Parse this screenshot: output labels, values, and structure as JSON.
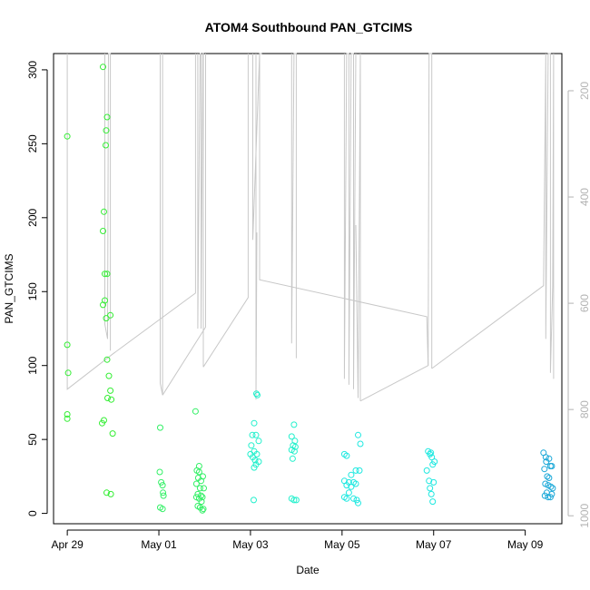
{
  "chart_data": {
    "type": "scatter",
    "title": "ATOM4 Southbound PAN_GTCIMS",
    "xlabel": "Date",
    "ylabel": "PAN_GTCIMS",
    "x_unit": "days",
    "x_origin_date": "Apr 29",
    "xlim": [
      -0.3,
      10.8
    ],
    "ylim": [
      -7,
      311
    ],
    "x_ticks": [
      {
        "x": 0,
        "label": "Apr 29"
      },
      {
        "x": 2,
        "label": "May 01"
      },
      {
        "x": 4,
        "label": "May 03"
      },
      {
        "x": 6,
        "label": "May 05"
      },
      {
        "x": 8,
        "label": "May 07"
      },
      {
        "x": 10,
        "label": "May 09"
      }
    ],
    "y_ticks": [
      0,
      50,
      100,
      150,
      200,
      250,
      300
    ],
    "y2_ticks": [
      200,
      400,
      600,
      800,
      1000
    ],
    "y2lim": [
      1015,
      130
    ],
    "grid": false,
    "legend": "none",
    "colors": {
      "trace": "#c8c8c8",
      "day1": "#33ee33",
      "day2": "#33f066",
      "day3": "#22f0cc",
      "day4": "#1ee8e0",
      "day5": "#1aa8d8"
    },
    "series": [
      {
        "color": "#33ee33",
        "points": [
          [
            0.0,
            255
          ],
          [
            0.0,
            114
          ],
          [
            0.02,
            95
          ],
          [
            0.0,
            67
          ],
          [
            0.0,
            64
          ],
          [
            0.78,
            302
          ],
          [
            0.87,
            268
          ],
          [
            0.85,
            259
          ],
          [
            0.84,
            249
          ],
          [
            0.8,
            204
          ],
          [
            0.78,
            191
          ],
          [
            0.82,
            162
          ],
          [
            0.87,
            162
          ],
          [
            0.78,
            141
          ],
          [
            0.82,
            144
          ],
          [
            0.85,
            132
          ],
          [
            0.94,
            134
          ],
          [
            0.87,
            104
          ],
          [
            0.91,
            93
          ],
          [
            0.94,
            83
          ],
          [
            0.88,
            78
          ],
          [
            0.96,
            77
          ],
          [
            0.8,
            63
          ],
          [
            0.76,
            61
          ],
          [
            0.99,
            54
          ],
          [
            0.86,
            14
          ],
          [
            0.95,
            13
          ]
        ]
      },
      {
        "color": "#33f066",
        "points": [
          [
            2.03,
            58
          ],
          [
            2.02,
            28
          ],
          [
            2.05,
            21
          ],
          [
            2.08,
            19
          ],
          [
            2.09,
            14
          ],
          [
            2.1,
            12
          ],
          [
            2.03,
            4
          ],
          [
            2.08,
            3
          ],
          [
            2.8,
            69
          ],
          [
            2.88,
            32
          ],
          [
            2.83,
            29
          ],
          [
            2.88,
            28
          ],
          [
            2.96,
            25
          ],
          [
            2.86,
            24
          ],
          [
            2.92,
            22
          ],
          [
            2.82,
            20
          ],
          [
            2.9,
            17
          ],
          [
            2.98,
            17
          ],
          [
            2.85,
            13
          ],
          [
            2.92,
            12
          ],
          [
            2.95,
            11
          ],
          [
            2.82,
            11
          ],
          [
            2.88,
            10
          ],
          [
            2.93,
            8
          ],
          [
            2.85,
            5
          ],
          [
            2.9,
            4
          ],
          [
            2.97,
            3
          ],
          [
            2.95,
            2
          ]
        ]
      },
      {
        "color": "#22f0cc",
        "points": [
          [
            4.13,
            81
          ],
          [
            4.15,
            80
          ],
          [
            4.08,
            61
          ],
          [
            4.04,
            53
          ],
          [
            4.12,
            53
          ],
          [
            4.18,
            49
          ],
          [
            4.02,
            46
          ],
          [
            4.08,
            42
          ],
          [
            4.0,
            40
          ],
          [
            4.14,
            40
          ],
          [
            4.05,
            38
          ],
          [
            4.1,
            36
          ],
          [
            4.18,
            35
          ],
          [
            4.12,
            33
          ],
          [
            4.08,
            31
          ],
          [
            4.07,
            9
          ],
          [
            4.95,
            60
          ],
          [
            4.9,
            52
          ],
          [
            4.97,
            49
          ],
          [
            4.93,
            46
          ],
          [
            4.98,
            45
          ],
          [
            4.9,
            43
          ],
          [
            4.96,
            42
          ],
          [
            4.92,
            37
          ],
          [
            4.9,
            10
          ],
          [
            4.95,
            9
          ],
          [
            5.0,
            9
          ]
        ]
      },
      {
        "color": "#1ee8e0",
        "points": [
          [
            6.35,
            53
          ],
          [
            6.4,
            47
          ],
          [
            6.05,
            40
          ],
          [
            6.1,
            39
          ],
          [
            6.3,
            29
          ],
          [
            6.38,
            29
          ],
          [
            6.2,
            26
          ],
          [
            6.05,
            22
          ],
          [
            6.15,
            21
          ],
          [
            6.25,
            21
          ],
          [
            6.3,
            20
          ],
          [
            6.1,
            19
          ],
          [
            6.2,
            18
          ],
          [
            6.15,
            14
          ],
          [
            6.05,
            11
          ],
          [
            6.1,
            10
          ],
          [
            6.25,
            10
          ],
          [
            6.32,
            9
          ],
          [
            6.35,
            7
          ],
          [
            7.88,
            42
          ],
          [
            7.94,
            41
          ],
          [
            7.92,
            40
          ],
          [
            7.96,
            38
          ],
          [
            8.02,
            35
          ],
          [
            7.98,
            33
          ],
          [
            7.85,
            29
          ],
          [
            7.9,
            22
          ],
          [
            8.0,
            21
          ],
          [
            7.92,
            17
          ],
          [
            7.95,
            13
          ],
          [
            7.98,
            8
          ]
        ]
      },
      {
        "color": "#1aa8d8",
        "points": [
          [
            10.4,
            41
          ],
          [
            10.45,
            38
          ],
          [
            10.52,
            37
          ],
          [
            10.46,
            35
          ],
          [
            10.55,
            32
          ],
          [
            10.58,
            32
          ],
          [
            10.42,
            30
          ],
          [
            10.48,
            25
          ],
          [
            10.52,
            24
          ],
          [
            10.44,
            20
          ],
          [
            10.5,
            19
          ],
          [
            10.56,
            18
          ],
          [
            10.6,
            17
          ],
          [
            10.47,
            14
          ],
          [
            10.58,
            13
          ],
          [
            10.43,
            12
          ],
          [
            10.5,
            11
          ],
          [
            10.55,
            11
          ]
        ]
      }
    ],
    "traces": [
      [
        [
          0.0,
          311
        ],
        [
          0.0,
          84
        ],
        [
          1.0,
          108
        ],
        [
          2.8,
          149
        ],
        [
          2.8,
          311
        ]
      ],
      [
        [
          0.82,
          311
        ],
        [
          0.82,
          128
        ],
        [
          0.88,
          118
        ],
        [
          0.9,
          311
        ],
        [
          0.94,
          311
        ],
        [
          0.94,
          110
        ]
      ],
      [
        [
          2.03,
          311
        ],
        [
          2.03,
          88
        ],
        [
          2.08,
          80
        ],
        [
          2.08,
          311
        ]
      ],
      [
        [
          2.08,
          80
        ],
        [
          3.02,
          126
        ],
        [
          3.02,
          311
        ]
      ],
      [
        [
          2.85,
          311
        ],
        [
          2.85,
          125
        ],
        [
          2.9,
          311
        ],
        [
          2.92,
          311
        ],
        [
          2.92,
          125
        ],
        [
          2.96,
          311
        ],
        [
          2.97,
          311
        ],
        [
          2.97,
          99
        ]
      ],
      [
        [
          2.97,
          99
        ],
        [
          3.95,
          146
        ],
        [
          3.95,
          311
        ]
      ],
      [
        [
          4.05,
          311
        ],
        [
          4.05,
          185
        ],
        [
          4.2,
          311
        ],
        [
          4.25,
          311
        ]
      ],
      [
        [
          4.2,
          311
        ],
        [
          4.2,
          158
        ],
        [
          7.85,
          133
        ],
        [
          7.88,
          100
        ]
      ],
      [
        [
          4.12,
          311
        ],
        [
          4.12,
          77
        ],
        [
          4.14,
          190
        ]
      ],
      [
        [
          4.9,
          311
        ],
        [
          4.9,
          115
        ],
        [
          4.95,
          311
        ],
        [
          5.0,
          311
        ],
        [
          5.0,
          105
        ]
      ],
      [
        [
          6.05,
          311
        ],
        [
          6.05,
          91
        ],
        [
          6.1,
          311
        ],
        [
          6.15,
          311
        ],
        [
          6.15,
          87
        ],
        [
          6.2,
          311
        ],
        [
          6.25,
          311
        ],
        [
          6.25,
          84
        ],
        [
          6.3,
          311
        ]
      ],
      [
        [
          6.3,
          195
        ],
        [
          6.35,
          78
        ],
        [
          6.4,
          311
        ],
        [
          6.4,
          76
        ]
      ],
      [
        [
          6.4,
          76
        ],
        [
          7.88,
          100
        ],
        [
          7.9,
          311
        ],
        [
          7.96,
          311
        ],
        [
          7.96,
          98
        ]
      ],
      [
        [
          7.96,
          98
        ],
        [
          10.4,
          154
        ],
        [
          10.45,
          311
        ],
        [
          10.45,
          118
        ],
        [
          10.5,
          311
        ],
        [
          10.55,
          311
        ],
        [
          10.55,
          95
        ],
        [
          10.6,
          154
        ],
        [
          10.62,
          311
        ],
        [
          10.62,
          91
        ]
      ]
    ]
  }
}
